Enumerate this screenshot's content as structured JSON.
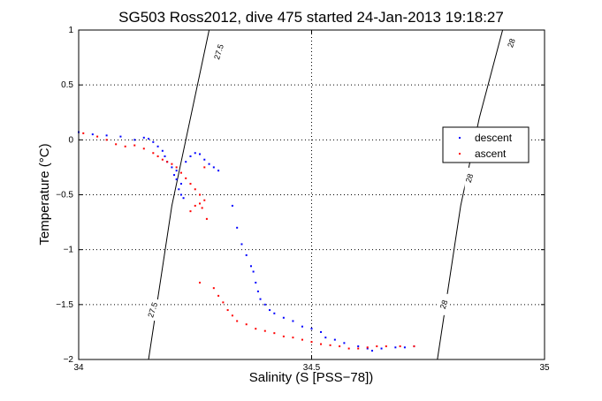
{
  "chart_data": {
    "type": "scatter",
    "title": "SG503 Ross2012, dive 475 started 24-Jan-2013 19:18:27",
    "xlabel": "Salinity (S [PSS−78])",
    "ylabel": "Temperature (°C)",
    "xlim": [
      34,
      35
    ],
    "ylim": [
      -2,
      1
    ],
    "xticks": [
      34,
      34.5,
      35
    ],
    "xtick_labels": [
      "34",
      "34.5",
      "35"
    ],
    "yticks": [
      -2,
      -1.5,
      -1,
      -0.5,
      0,
      0.5,
      1
    ],
    "ytick_labels": [
      "−2",
      "−1.5",
      "−1",
      "−0.5",
      "0",
      "0.5",
      "1"
    ],
    "grid": true,
    "legend_position": "right",
    "series": [
      {
        "name": "descent",
        "color": "#0000ff",
        "marker": "dot",
        "points": [
          [
            34.0,
            0.07
          ],
          [
            34.03,
            0.05
          ],
          [
            34.06,
            0.04
          ],
          [
            34.09,
            0.03
          ],
          [
            34.12,
            0.0
          ],
          [
            34.14,
            0.02
          ],
          [
            34.15,
            0.01
          ],
          [
            34.16,
            -0.02
          ],
          [
            34.17,
            -0.06
          ],
          [
            34.18,
            -0.1
          ],
          [
            34.185,
            -0.15
          ],
          [
            34.19,
            -0.2
          ],
          [
            34.2,
            -0.25
          ],
          [
            34.21,
            -0.28
          ],
          [
            34.205,
            -0.32
          ],
          [
            34.21,
            -0.36
          ],
          [
            34.22,
            -0.4
          ],
          [
            34.215,
            -0.45
          ],
          [
            34.22,
            -0.5
          ],
          [
            34.225,
            -0.53
          ],
          [
            34.23,
            -0.2
          ],
          [
            34.24,
            -0.15
          ],
          [
            34.25,
            -0.12
          ],
          [
            34.26,
            -0.13
          ],
          [
            34.27,
            -0.18
          ],
          [
            34.28,
            -0.22
          ],
          [
            34.29,
            -0.25
          ],
          [
            34.3,
            -0.28
          ],
          [
            34.33,
            -0.6
          ],
          [
            34.34,
            -0.8
          ],
          [
            34.35,
            -0.95
          ],
          [
            34.36,
            -1.05
          ],
          [
            34.37,
            -1.15
          ],
          [
            34.375,
            -1.2
          ],
          [
            34.38,
            -1.3
          ],
          [
            34.385,
            -1.38
          ],
          [
            34.39,
            -1.45
          ],
          [
            34.4,
            -1.5
          ],
          [
            34.41,
            -1.55
          ],
          [
            34.42,
            -1.58
          ],
          [
            34.44,
            -1.62
          ],
          [
            34.46,
            -1.65
          ],
          [
            34.48,
            -1.7
          ],
          [
            34.5,
            -1.72
          ],
          [
            34.52,
            -1.75
          ],
          [
            34.53,
            -1.8
          ],
          [
            34.55,
            -1.82
          ],
          [
            34.57,
            -1.85
          ],
          [
            34.6,
            -1.88
          ],
          [
            34.62,
            -1.9
          ],
          [
            34.63,
            -1.92
          ],
          [
            34.65,
            -1.9
          ],
          [
            34.68,
            -1.89
          ],
          [
            34.7,
            -1.89
          ],
          [
            34.72,
            -1.88
          ]
        ]
      },
      {
        "name": "ascent",
        "color": "#ff0000",
        "marker": "dot",
        "points": [
          [
            34.01,
            0.06
          ],
          [
            34.04,
            0.03
          ],
          [
            34.06,
            0.0
          ],
          [
            34.08,
            -0.04
          ],
          [
            34.1,
            -0.06
          ],
          [
            34.12,
            -0.05
          ],
          [
            34.14,
            -0.08
          ],
          [
            34.16,
            -0.12
          ],
          [
            34.17,
            -0.15
          ],
          [
            34.18,
            -0.18
          ],
          [
            34.19,
            -0.2
          ],
          [
            34.2,
            -0.22
          ],
          [
            34.21,
            -0.25
          ],
          [
            34.22,
            -0.3
          ],
          [
            34.23,
            -0.35
          ],
          [
            34.24,
            -0.4
          ],
          [
            34.25,
            -0.45
          ],
          [
            34.26,
            -0.5
          ],
          [
            34.27,
            -0.55
          ],
          [
            34.265,
            -0.62
          ],
          [
            34.275,
            -0.72
          ],
          [
            34.26,
            -0.58
          ],
          [
            34.25,
            -0.6
          ],
          [
            34.24,
            -0.65
          ],
          [
            34.27,
            -0.25
          ],
          [
            34.29,
            -1.35
          ],
          [
            34.3,
            -1.42
          ],
          [
            34.31,
            -1.48
          ],
          [
            34.32,
            -1.55
          ],
          [
            34.33,
            -1.6
          ],
          [
            34.34,
            -1.65
          ],
          [
            34.36,
            -1.68
          ],
          [
            34.38,
            -1.72
          ],
          [
            34.4,
            -1.74
          ],
          [
            34.42,
            -1.76
          ],
          [
            34.44,
            -1.79
          ],
          [
            34.46,
            -1.8
          ],
          [
            34.48,
            -1.82
          ],
          [
            34.5,
            -1.84
          ],
          [
            34.52,
            -1.86
          ],
          [
            34.54,
            -1.87
          ],
          [
            34.56,
            -1.88
          ],
          [
            34.58,
            -1.9
          ],
          [
            34.6,
            -1.9
          ],
          [
            34.62,
            -1.89
          ],
          [
            34.64,
            -1.88
          ],
          [
            34.66,
            -1.88
          ],
          [
            34.69,
            -1.88
          ],
          [
            34.72,
            -1.88
          ],
          [
            34.26,
            -1.3
          ]
        ]
      }
    ],
    "contours": [
      {
        "label": "27.5",
        "points": [
          [
            34.15,
            -2.0
          ],
          [
            34.2,
            -0.6
          ],
          [
            34.23,
            0.0
          ],
          [
            34.28,
            1.0
          ]
        ]
      },
      {
        "label": "28",
        "points": [
          [
            34.77,
            -2.0
          ],
          [
            34.82,
            -0.6
          ],
          [
            34.86,
            0.2
          ],
          [
            34.91,
            1.0
          ]
        ]
      }
    ],
    "contour_labels": [
      {
        "text": "27.5",
        "at": [
          34.16,
          -1.55
        ]
      },
      {
        "text": "27.5",
        "at": [
          34.302,
          0.8
        ]
      },
      {
        "text": "28",
        "at": [
          34.785,
          -1.5
        ]
      },
      {
        "text": "28",
        "at": [
          34.84,
          -0.35
        ]
      },
      {
        "text": "28",
        "at": [
          34.93,
          0.88
        ]
      }
    ]
  }
}
